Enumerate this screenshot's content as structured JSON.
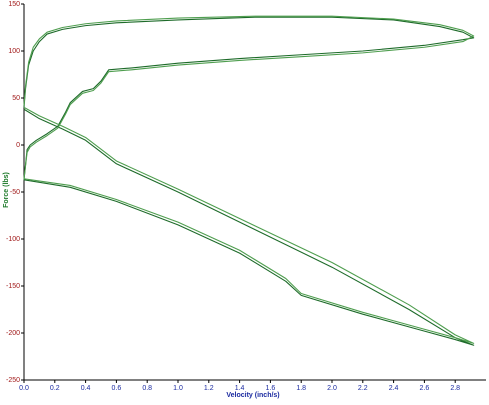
{
  "chart_data": {
    "type": "line",
    "x_label": "Velocity (inch/s)",
    "y_label": "Force (lbs)",
    "xlim": [
      0,
      3.0
    ],
    "ylim": [
      -250,
      150
    ],
    "xticks": [
      {
        "value": 0,
        "label": "0.0"
      },
      0.2,
      0.4,
      0.6,
      0.8,
      {
        "value": 1,
        "label": "1.0"
      },
      1.2,
      1.4,
      1.6,
      1.8,
      {
        "value": 2,
        "label": "2.0"
      },
      2.2,
      2.4,
      2.6,
      2.8
    ],
    "yticks": [
      -250,
      -200,
      -150,
      -100,
      -50,
      0,
      50,
      100,
      150
    ],
    "grid": false,
    "series": [
      {
        "color": "#1e6b2a",
        "x": [
          0,
          0.01,
          0.03,
          0.06,
          0.1,
          0.15,
          0.25,
          0.4,
          0.6,
          1.0,
          1.5,
          2.0,
          2.4,
          2.7,
          2.85,
          2.92,
          2.85,
          2.6,
          2.2,
          1.8,
          1.4,
          1.0,
          0.7,
          0.55,
          0.5,
          0.45,
          0.38,
          0.3,
          0.27,
          0.22,
          0.15,
          0.08,
          0.04,
          0.02,
          0,
          0.3,
          0.6,
          1.0,
          1.4,
          1.7,
          1.8,
          2.2,
          2.6,
          2.8,
          2.92,
          2.8,
          2.5,
          2.0,
          1.5,
          1.0,
          0.6,
          0.4,
          0.25,
          0.1,
          0
        ],
        "values": [
          40,
          60,
          85,
          100,
          110,
          118,
          123,
          127,
          130,
          133,
          136,
          136,
          133,
          126,
          120,
          114,
          112,
          106,
          100,
          96,
          92,
          87,
          82,
          80,
          68,
          60,
          57,
          45,
          35,
          20,
          12,
          5,
          0,
          -5,
          -37,
          -45,
          -60,
          -85,
          -115,
          -145,
          -160,
          -180,
          -198,
          -207,
          -213,
          -205,
          -175,
          -130,
          -90,
          -50,
          -20,
          5,
          17,
          28,
          38
        ]
      },
      {
        "color": "#4f9e4f",
        "x": [
          0,
          0.01,
          0.03,
          0.06,
          0.1,
          0.15,
          0.25,
          0.4,
          0.6,
          1.0,
          1.5,
          2.0,
          2.4,
          2.7,
          2.85,
          2.92,
          2.85,
          2.6,
          2.2,
          1.8,
          1.4,
          1.0,
          0.7,
          0.55,
          0.5,
          0.45,
          0.38,
          0.3,
          0.27,
          0.22,
          0.15,
          0.08,
          0.04,
          0.02,
          0,
          0.3,
          0.6,
          1.0,
          1.4,
          1.7,
          1.8,
          2.2,
          2.6,
          2.8,
          2.92,
          2.8,
          2.5,
          2.0,
          1.5,
          1.0,
          0.6,
          0.4,
          0.25,
          0.1,
          0
        ],
        "values": [
          42,
          63,
          88,
          104,
          113,
          120,
          125,
          129,
          132,
          135,
          137,
          137,
          134,
          128,
          122,
          116,
          110,
          104,
          98,
          94,
          90,
          85,
          80,
          78,
          66,
          58,
          55,
          43,
          33,
          18,
          10,
          3,
          -2,
          -8,
          -36,
          -43,
          -58,
          -82,
          -112,
          -142,
          -158,
          -178,
          -196,
          -205,
          -211,
          -202,
          -170,
          -125,
          -86,
          -47,
          -17,
          8,
          20,
          31,
          40
        ]
      }
    ]
  }
}
